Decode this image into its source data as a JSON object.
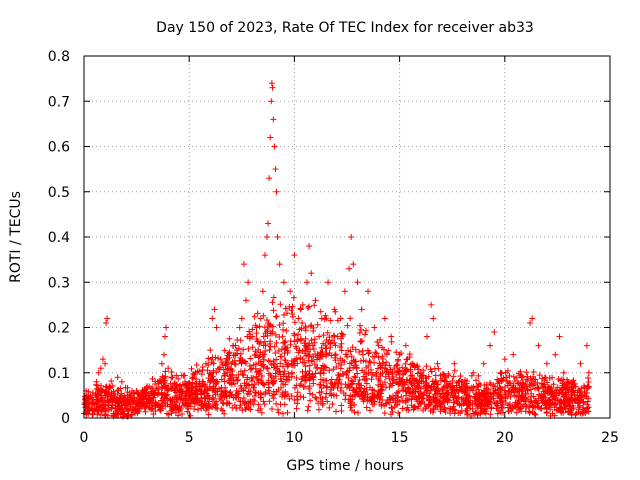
{
  "chart_data": {
    "type": "scatter",
    "title": "Day 150 of 2023, Rate Of TEC Index for receiver ab33",
    "xlabel": "GPS time / hours",
    "ylabel": "ROTI / TECUs",
    "xlim": [
      0,
      25
    ],
    "ylim": [
      0,
      0.8
    ],
    "xticks": [
      0,
      5,
      10,
      15,
      20,
      25
    ],
    "yticks": [
      0,
      0.1,
      0.2,
      0.3,
      0.4,
      0.5,
      0.6,
      0.7,
      0.8
    ],
    "ytick_labels": [
      "0",
      "0.1",
      "0.2",
      "0.3",
      "0.4",
      "0.5",
      "0.6",
      "0.7",
      "0.8"
    ],
    "grid": true,
    "marker": "+",
    "color": "#ff0000",
    "series": [
      {
        "points": [
          [
            0.0,
            0.01
          ],
          [
            0.05,
            0.04
          ],
          [
            0.1,
            0.06
          ],
          [
            0.2,
            0.03
          ],
          [
            0.3,
            0.05
          ],
          [
            0.5,
            0.02
          ],
          [
            0.6,
            0.08
          ],
          [
            0.7,
            0.1
          ],
          [
            0.8,
            0.11
          ],
          [
            0.9,
            0.13
          ],
          [
            1.0,
            0.12
          ],
          [
            1.05,
            0.21
          ],
          [
            1.1,
            0.22
          ],
          [
            1.2,
            0.07
          ],
          [
            1.4,
            0.05
          ],
          [
            1.6,
            0.09
          ],
          [
            1.8,
            0.08
          ],
          [
            2.0,
            0.04
          ],
          [
            2.2,
            0.03
          ],
          [
            2.5,
            0.06
          ],
          [
            2.8,
            0.05
          ],
          [
            3.0,
            0.07
          ],
          [
            3.2,
            0.04
          ],
          [
            3.5,
            0.08
          ],
          [
            3.7,
            0.12
          ],
          [
            3.8,
            0.14
          ],
          [
            3.85,
            0.18
          ],
          [
            3.9,
            0.2
          ],
          [
            4.0,
            0.11
          ],
          [
            4.2,
            0.09
          ],
          [
            4.4,
            0.07
          ],
          [
            4.6,
            0.06
          ],
          [
            4.8,
            0.08
          ],
          [
            5.0,
            0.06
          ],
          [
            5.3,
            0.1
          ],
          [
            5.5,
            0.08
          ],
          [
            5.8,
            0.12
          ],
          [
            6.0,
            0.15
          ],
          [
            6.1,
            0.22
          ],
          [
            6.2,
            0.24
          ],
          [
            6.3,
            0.2
          ],
          [
            6.5,
            0.13
          ],
          [
            6.8,
            0.1
          ],
          [
            7.0,
            0.12
          ],
          [
            7.2,
            0.16
          ],
          [
            7.4,
            0.2
          ],
          [
            7.5,
            0.22
          ],
          [
            7.6,
            0.34
          ],
          [
            7.7,
            0.26
          ],
          [
            7.8,
            0.3
          ],
          [
            8.0,
            0.18
          ],
          [
            8.2,
            0.2
          ],
          [
            8.4,
            0.22
          ],
          [
            8.5,
            0.28
          ],
          [
            8.6,
            0.36
          ],
          [
            8.7,
            0.4
          ],
          [
            8.75,
            0.43
          ],
          [
            8.8,
            0.53
          ],
          [
            8.85,
            0.62
          ],
          [
            8.9,
            0.7
          ],
          [
            8.93,
            0.74
          ],
          [
            8.96,
            0.73
          ],
          [
            9.0,
            0.66
          ],
          [
            9.05,
            0.6
          ],
          [
            9.1,
            0.55
          ],
          [
            9.15,
            0.5
          ],
          [
            9.2,
            0.4
          ],
          [
            9.3,
            0.34
          ],
          [
            9.5,
            0.3
          ],
          [
            9.8,
            0.28
          ],
          [
            10.0,
            0.36
          ],
          [
            10.2,
            0.22
          ],
          [
            10.4,
            0.25
          ],
          [
            10.6,
            0.3
          ],
          [
            10.7,
            0.38
          ],
          [
            10.8,
            0.32
          ],
          [
            11.0,
            0.26
          ],
          [
            11.3,
            0.22
          ],
          [
            11.6,
            0.3
          ],
          [
            11.9,
            0.24
          ],
          [
            12.2,
            0.22
          ],
          [
            12.4,
            0.28
          ],
          [
            12.6,
            0.33
          ],
          [
            12.7,
            0.4
          ],
          [
            12.8,
            0.34
          ],
          [
            13.0,
            0.3
          ],
          [
            13.2,
            0.24
          ],
          [
            13.5,
            0.28
          ],
          [
            13.8,
            0.2
          ],
          [
            14.0,
            0.16
          ],
          [
            14.3,
            0.22
          ],
          [
            14.6,
            0.18
          ],
          [
            15.0,
            0.14
          ],
          [
            15.3,
            0.16
          ],
          [
            15.6,
            0.12
          ],
          [
            16.0,
            0.1
          ],
          [
            16.3,
            0.18
          ],
          [
            16.5,
            0.25
          ],
          [
            16.6,
            0.22
          ],
          [
            16.8,
            0.12
          ],
          [
            17.2,
            0.09
          ],
          [
            17.6,
            0.12
          ],
          [
            18.0,
            0.08
          ],
          [
            18.5,
            0.1
          ],
          [
            19.0,
            0.12
          ],
          [
            19.3,
            0.16
          ],
          [
            19.5,
            0.19
          ],
          [
            19.8,
            0.1
          ],
          [
            20.0,
            0.13
          ],
          [
            20.4,
            0.14
          ],
          [
            20.8,
            0.09
          ],
          [
            21.2,
            0.21
          ],
          [
            21.3,
            0.22
          ],
          [
            21.6,
            0.16
          ],
          [
            22.0,
            0.12
          ],
          [
            22.4,
            0.14
          ],
          [
            22.6,
            0.18
          ],
          [
            22.8,
            0.1
          ],
          [
            23.2,
            0.08
          ],
          [
            23.6,
            0.12
          ],
          [
            23.9,
            0.16
          ],
          [
            24.0,
            0.1
          ]
        ],
        "background_band": {
          "x_range": [
            0,
            24
          ],
          "baseline_by_hour": [
            0.02,
            0.03,
            0.02,
            0.03,
            0.04,
            0.04,
            0.05,
            0.06,
            0.08,
            0.1,
            0.1,
            0.1,
            0.09,
            0.08,
            0.07,
            0.06,
            0.05,
            0.04,
            0.04,
            0.03,
            0.04,
            0.04,
            0.04,
            0.03,
            0.03
          ],
          "spread_by_hour": [
            0.05,
            0.06,
            0.05,
            0.05,
            0.07,
            0.07,
            0.09,
            0.12,
            0.16,
            0.18,
            0.18,
            0.16,
            0.15,
            0.14,
            0.12,
            0.1,
            0.08,
            0.07,
            0.07,
            0.06,
            0.07,
            0.07,
            0.07,
            0.06,
            0.06
          ]
        }
      }
    ]
  }
}
